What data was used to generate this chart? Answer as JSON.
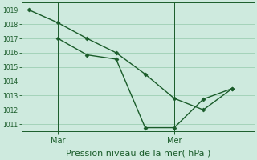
{
  "background_color": "#ceeade",
  "grid_color": "#9ecfb4",
  "line_color": "#1a5c2a",
  "marker_color": "#1a5c2a",
  "xlabel": "Pression niveau de la mer( hPa )",
  "ylim": [
    1010.5,
    1019.5
  ],
  "yticks": [
    1011,
    1012,
    1013,
    1014,
    1015,
    1016,
    1017,
    1018,
    1019
  ],
  "line1_x": [
    0,
    8,
    16,
    24,
    32,
    40,
    48,
    56
  ],
  "line1_y": [
    1019.0,
    1018.1,
    1017.0,
    1016.0,
    1014.5,
    1012.8,
    1012.0,
    1013.5
  ],
  "line2_x": [
    8,
    16,
    24,
    32,
    40,
    48,
    56
  ],
  "line2_y": [
    1017.0,
    1015.85,
    1015.55,
    1010.75,
    1010.75,
    1012.75,
    1013.5
  ],
  "mar_x": 8,
  "mer_x": 40,
  "mar_label": "Mar",
  "mer_label": "Mer",
  "xlim": [
    -2,
    62
  ],
  "vline_color": "#1a5c2a",
  "spine_color": "#1a5c2a",
  "tick_color": "#1a5c2a",
  "xlabel_fontsize": 8,
  "ytick_fontsize": 5.5,
  "xtick_fontsize": 7
}
